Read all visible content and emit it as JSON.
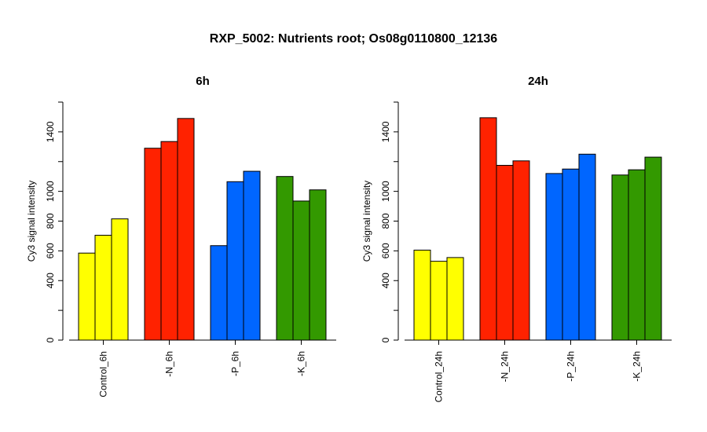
{
  "title": "RXP_5002: Nutrients root; Os08g0110800_12136",
  "colors": {
    "Control": "#ffff00",
    "N": "#ff2200",
    "P": "#0066ff",
    "K": "#339900"
  },
  "chart_data": [
    {
      "type": "bar",
      "title": "6h",
      "ylabel": "Cy3 signal intensity",
      "ylim": [
        0,
        1600
      ],
      "yticks": [
        0,
        400,
        600,
        800,
        1000,
        1400
      ],
      "groups": [
        {
          "label": "Control_6h",
          "color_key": "Control",
          "values": [
            585,
            705,
            815
          ]
        },
        {
          "label": "-N_6h",
          "color_key": "N",
          "values": [
            1290,
            1335,
            1490
          ]
        },
        {
          "label": "-P_6h",
          "color_key": "P",
          "values": [
            635,
            1065,
            1135
          ]
        },
        {
          "label": "-K_6h",
          "color_key": "K",
          "values": [
            1100,
            935,
            1010
          ]
        }
      ]
    },
    {
      "type": "bar",
      "title": "24h",
      "ylabel": "Cy3 signal intensity",
      "ylim": [
        0,
        1600
      ],
      "yticks": [
        0,
        400,
        600,
        800,
        1000,
        1400
      ],
      "groups": [
        {
          "label": "Control_24h",
          "color_key": "Control",
          "values": [
            605,
            530,
            555
          ]
        },
        {
          "label": "-N_24h",
          "color_key": "N",
          "values": [
            1495,
            1175,
            1205
          ]
        },
        {
          "label": "-P_24h",
          "color_key": "P",
          "values": [
            1120,
            1150,
            1250
          ]
        },
        {
          "label": "-K_24h",
          "color_key": "K",
          "values": [
            1110,
            1145,
            1230
          ]
        }
      ]
    }
  ]
}
